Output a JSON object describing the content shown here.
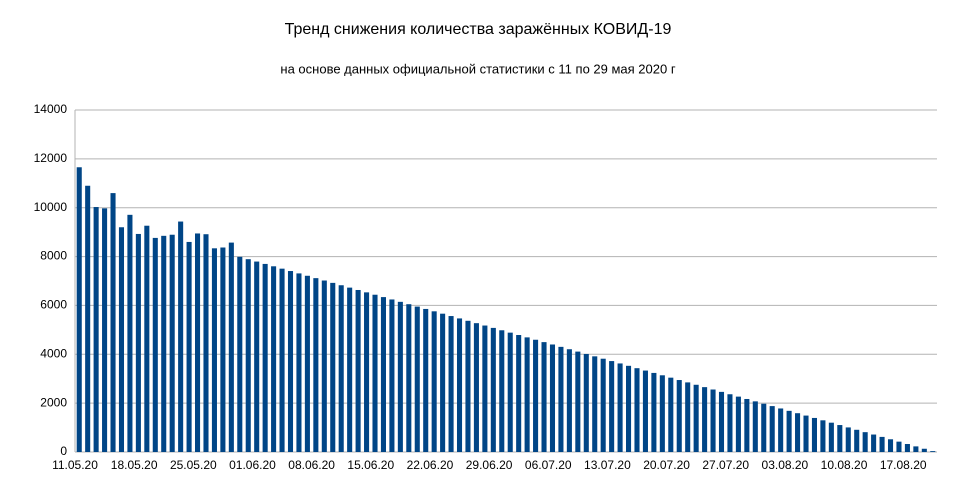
{
  "chart_data": {
    "type": "bar",
    "title": "Тренд снижения количества заражённых КОВИД-19",
    "subtitle": "на основе данных официальной статистики с 11 по 29 мая 2020 г",
    "categories": [
      "11.05.20",
      null,
      null,
      null,
      null,
      null,
      null,
      "18.05.20",
      null,
      null,
      null,
      null,
      null,
      null,
      "25.05.20",
      null,
      null,
      null,
      null,
      null,
      null,
      "01.06.20",
      null,
      null,
      null,
      null,
      null,
      null,
      "08.06.20",
      null,
      null,
      null,
      null,
      null,
      null,
      "15.06.20",
      null,
      null,
      null,
      null,
      null,
      null,
      "22.06.20",
      null,
      null,
      null,
      null,
      null,
      null,
      "29.06.20",
      null,
      null,
      null,
      null,
      null,
      null,
      "06.07.20",
      null,
      null,
      null,
      null,
      null,
      null,
      "13.07.20",
      null,
      null,
      null,
      null,
      null,
      null,
      "20.07.20",
      null,
      null,
      null,
      null,
      null,
      null,
      "27.07.20",
      null,
      null,
      null,
      null,
      null,
      null,
      "03.08.20",
      null,
      null,
      null,
      null,
      null,
      null,
      "10.08.20",
      null,
      null,
      null,
      null,
      null,
      null,
      "17.08.20",
      null,
      null,
      null
    ],
    "values": [
      11656,
      10899,
      10028,
      9974,
      10598,
      9200,
      9709,
      8926,
      9263,
      8764,
      8849,
      8894,
      9434,
      8599,
      8946,
      8915,
      8338,
      8371,
      8572,
      7990,
      7893,
      7796,
      7699,
      7602,
      7505,
      7408,
      7311,
      7214,
      7117,
      7020,
      6923,
      6826,
      6729,
      6632,
      6535,
      6438,
      6341,
      6244,
      6147,
      6050,
      5953,
      5856,
      5759,
      5662,
      5565,
      5468,
      5371,
      5274,
      5177,
      5080,
      4983,
      4886,
      4789,
      4692,
      4595,
      4498,
      4401,
      4304,
      4207,
      4110,
      4013,
      3916,
      3819,
      3722,
      3625,
      3528,
      3431,
      3334,
      3237,
      3140,
      3043,
      2946,
      2849,
      2752,
      2655,
      2558,
      2461,
      2364,
      2267,
      2170,
      2073,
      1976,
      1879,
      1782,
      1685,
      1588,
      1491,
      1394,
      1297,
      1200,
      1103,
      1006,
      909,
      812,
      715,
      618,
      521,
      424,
      327,
      230,
      133,
      36
    ],
    "color": "#004586",
    "ylim": [
      0,
      14000
    ],
    "yticks": [
      0,
      2000,
      4000,
      6000,
      8000,
      10000,
      12000,
      14000
    ],
    "grid": true
  }
}
